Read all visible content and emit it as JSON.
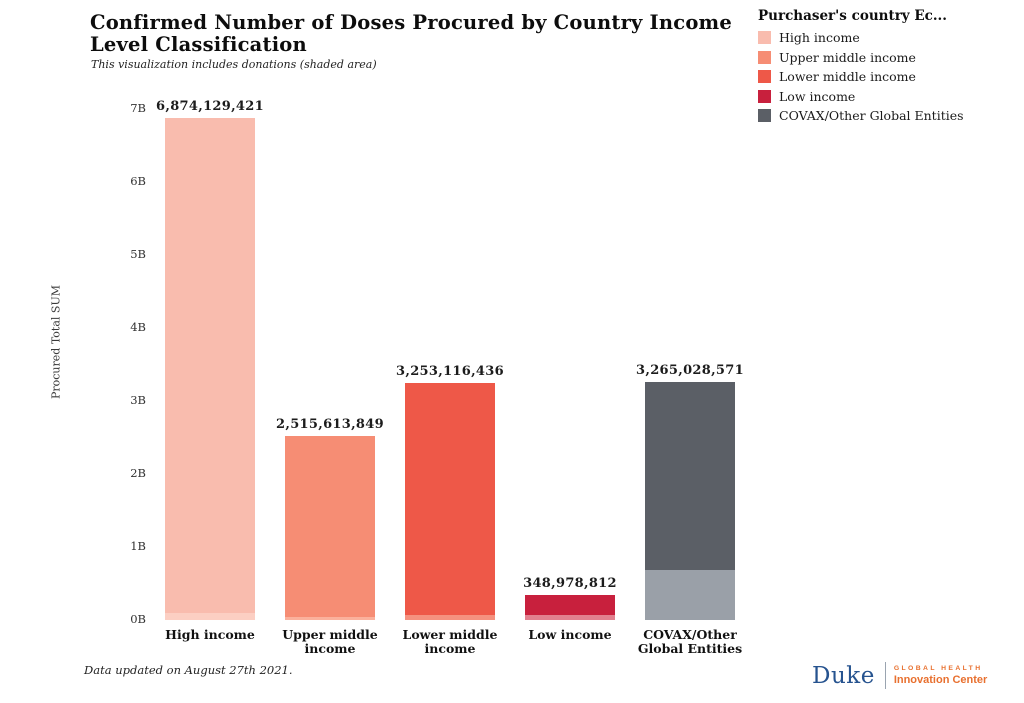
{
  "title": "Confirmed Number of Doses Procured by Country Income Level Classification",
  "subtitle": "This visualization includes donations (shaded area)",
  "legend": {
    "title": "Purchaser's country Ec...",
    "items": [
      {
        "label": "High income",
        "color": "#f9bcae"
      },
      {
        "label": "Upper middle income",
        "color": "#f68d74"
      },
      {
        "label": "Lower middle income",
        "color": "#ee5848"
      },
      {
        "label": "Low income",
        "color": "#c8203d"
      },
      {
        "label": "COVAX/Other Global Entities",
        "color": "#5b5f66"
      }
    ]
  },
  "chart_data": {
    "type": "bar",
    "title": "Confirmed Number of Doses Procured by Country Income Level Classification",
    "subtitle": "This visualization includes donations (shaded area)",
    "categories": [
      "High income",
      "Upper middle income",
      "Lower middle income",
      "Low income",
      "COVAX/Other Global Entities"
    ],
    "values": [
      6874129421,
      2515613849,
      3253116436,
      348978812,
      3265028571
    ],
    "value_labels": [
      "6,874,129,421",
      "2,515,613,849",
      "3,253,116,436",
      "348,978,812",
      "3,265,028,571"
    ],
    "donation_shaded_b_estimate": [
      0.1,
      0.04,
      0.07,
      0.07,
      0.68
    ],
    "bar_colors": [
      "#f9bcae",
      "#f68d74",
      "#ee5848",
      "#c8203d",
      "#5b5f66"
    ],
    "donation_colors": [
      "#fccfc3",
      "#fbb19c",
      "#f5917f",
      "#e2808f",
      "#9aa0a8"
    ],
    "xlabel": "",
    "ylabel": "Procured Total SUM",
    "yticks": [
      "0B",
      "1B",
      "2B",
      "3B",
      "4B",
      "5B",
      "6B",
      "7B"
    ],
    "ylim": [
      0,
      7000000000
    ],
    "grid": false,
    "legend_position": "top-right",
    "legend_title": "Purchaser's country Ec..."
  },
  "footer": {
    "note": "Data updated on August 27th 2021."
  },
  "logo": {
    "brand": "Duke",
    "line1": "GLOBAL HEALTH",
    "line2": "Innovation Center",
    "brand_color": "#26538f",
    "accent_color": "#e8702f"
  }
}
